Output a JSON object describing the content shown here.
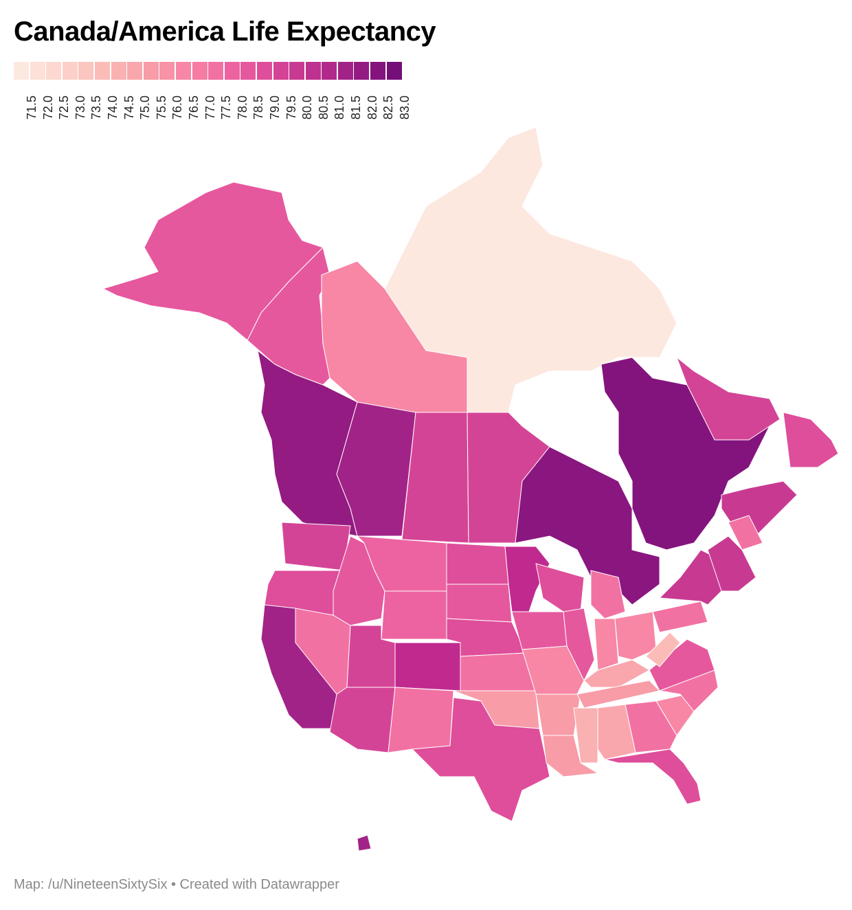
{
  "title": "Canada/America Life Expectancy",
  "legend": {
    "ticks": [
      "71.5",
      "72.0",
      "72.5",
      "73.0",
      "73.5",
      "74.0",
      "74.5",
      "75.0",
      "75.5",
      "76.0",
      "76.5",
      "77.0",
      "77.5",
      "78.0",
      "78.5",
      "79.0",
      "79.5",
      "80.0",
      "80.5",
      "81.0",
      "81.5",
      "82.0",
      "82.5",
      "83.0"
    ],
    "colors": [
      "#fde8e0",
      "#fde0d8",
      "#fcd8d0",
      "#fcd0c8",
      "#fbc6c0",
      "#fbbcb8",
      "#fab1b2",
      "#f9a7ad",
      "#f89ca8",
      "#f892a6",
      "#f787a5",
      "#f67ca4",
      "#f271a3",
      "#ed63a1",
      "#e6589e",
      "#de4e9a",
      "#d44496",
      "#c83a92",
      "#bd318f",
      "#b12a8b",
      "#a22387",
      "#931b82",
      "#84147d",
      "#750f78"
    ]
  },
  "regions": [
    {
      "name": "Nunavut / Northwest Territories",
      "color": "#fde8e0"
    },
    {
      "name": "Yukon",
      "color": "#e6589e"
    },
    {
      "name": "Northwest Territories",
      "color": "#f787a5"
    },
    {
      "name": "British Columbia",
      "color": "#931b82"
    },
    {
      "name": "Alberta",
      "color": "#a22387"
    },
    {
      "name": "Saskatchewan",
      "color": "#d44496"
    },
    {
      "name": "Manitoba",
      "color": "#d44496"
    },
    {
      "name": "Ontario",
      "color": "#8a1680"
    },
    {
      "name": "Quebec",
      "color": "#84147d"
    },
    {
      "name": "Labrador",
      "color": "#d44496"
    },
    {
      "name": "Newfoundland",
      "color": "#de4e9a"
    },
    {
      "name": "Maritimes",
      "color": "#c83a92"
    },
    {
      "name": "Alaska",
      "color": "#e6589e"
    },
    {
      "name": "Washington",
      "color": "#d44496"
    },
    {
      "name": "Oregon",
      "color": "#de4e9a"
    },
    {
      "name": "California",
      "color": "#a22387"
    },
    {
      "name": "Nevada",
      "color": "#f271a3"
    },
    {
      "name": "Idaho",
      "color": "#e6589e"
    },
    {
      "name": "Montana",
      "color": "#ed63a1"
    },
    {
      "name": "Wyoming",
      "color": "#ed63a1"
    },
    {
      "name": "Utah",
      "color": "#d44496"
    },
    {
      "name": "Arizona",
      "color": "#d44496"
    },
    {
      "name": "Colorado",
      "color": "#c02a8f"
    },
    {
      "name": "New Mexico",
      "color": "#f271a3"
    },
    {
      "name": "North Dakota",
      "color": "#de4e9a"
    },
    {
      "name": "South Dakota",
      "color": "#e6589e"
    },
    {
      "name": "Nebraska",
      "color": "#de4e9a"
    },
    {
      "name": "Kansas",
      "color": "#f271a3"
    },
    {
      "name": "Oklahoma",
      "color": "#f89ca8"
    },
    {
      "name": "Texas",
      "color": "#de4e9a"
    },
    {
      "name": "Minnesota",
      "color": "#c02a8f"
    },
    {
      "name": "Iowa",
      "color": "#e6589e"
    },
    {
      "name": "Missouri",
      "color": "#f787a5"
    },
    {
      "name": "Arkansas",
      "color": "#f89ca8"
    },
    {
      "name": "Louisiana",
      "color": "#f89ca8"
    },
    {
      "name": "Wisconsin",
      "color": "#de4e9a"
    },
    {
      "name": "Illinois",
      "color": "#e6589e"
    },
    {
      "name": "Michigan",
      "color": "#f271a3"
    },
    {
      "name": "Indiana",
      "color": "#f787a5"
    },
    {
      "name": "Ohio",
      "color": "#f787a5"
    },
    {
      "name": "Kentucky",
      "color": "#f9a7ad"
    },
    {
      "name": "Tennessee",
      "color": "#f89ca8"
    },
    {
      "name": "Mississippi",
      "color": "#fab1b2"
    },
    {
      "name": "Alabama",
      "color": "#f9a7ad"
    },
    {
      "name": "Georgia",
      "color": "#f271a3"
    },
    {
      "name": "Florida",
      "color": "#de4e9a"
    },
    {
      "name": "South Carolina",
      "color": "#f787a5"
    },
    {
      "name": "North Carolina",
      "color": "#f271a3"
    },
    {
      "name": "Virginia",
      "color": "#e6589e"
    },
    {
      "name": "West Virginia",
      "color": "#fbbcb8"
    },
    {
      "name": "Pennsylvania",
      "color": "#f271a3"
    },
    {
      "name": "New York",
      "color": "#c83a92"
    },
    {
      "name": "New England",
      "color": "#c83a92"
    },
    {
      "name": "Maine",
      "color": "#f271a3"
    },
    {
      "name": "Hawaii",
      "color": "#a22387"
    }
  ],
  "footer": "Map: /u/NineteenSixtySix • Created with Datawrapper"
}
